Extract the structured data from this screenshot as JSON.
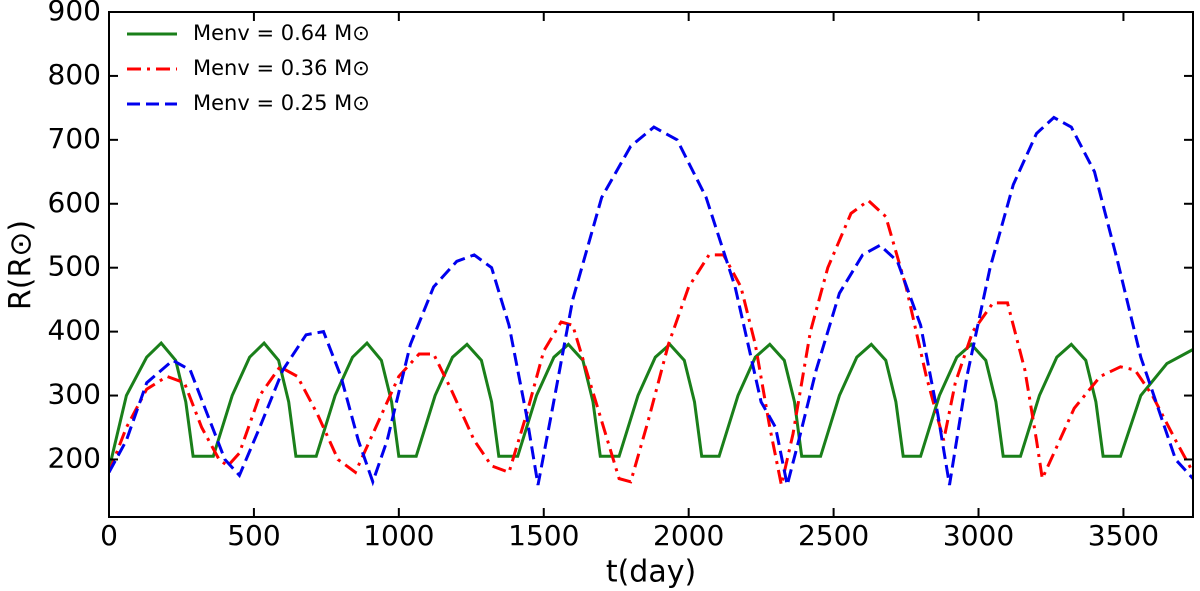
{
  "chart_data": {
    "type": "line",
    "x_label": "t(day)",
    "y_label": "R(R⊙)",
    "xlim": [
      0,
      3740
    ],
    "ylim": [
      110,
      900
    ],
    "xticks": [
      0,
      500,
      1000,
      1500,
      2000,
      2500,
      3000,
      3500
    ],
    "yticks": [
      200,
      300,
      400,
      500,
      600,
      700,
      800,
      900
    ],
    "legend": "upper left",
    "series": [
      {
        "name": "Menv = 0.64 M⊙",
        "color": "#1a7f1a",
        "style": "solid",
        "x": [
          0,
          60,
          130,
          180,
          230,
          265,
          290,
          360,
          425,
          485,
          535,
          585,
          620,
          645,
          715,
          780,
          840,
          890,
          940,
          975,
          1000,
          1060,
          1125,
          1185,
          1235,
          1285,
          1320,
          1345,
          1410,
          1475,
          1535,
          1585,
          1635,
          1670,
          1695,
          1760,
          1825,
          1885,
          1935,
          1985,
          2020,
          2045,
          2105,
          2170,
          2230,
          2280,
          2330,
          2365,
          2390,
          2455,
          2520,
          2580,
          2630,
          2680,
          2715,
          2740,
          2800,
          2865,
          2925,
          2975,
          3025,
          3060,
          3085,
          3145,
          3210,
          3270,
          3320,
          3370,
          3405,
          3430,
          3490,
          3560,
          3650,
          3740
        ],
        "values": [
          185,
          300,
          360,
          382,
          355,
          290,
          205,
          205,
          300,
          360,
          382,
          355,
          290,
          205,
          205,
          300,
          360,
          382,
          355,
          290,
          205,
          205,
          300,
          360,
          380,
          355,
          290,
          205,
          205,
          300,
          360,
          380,
          355,
          290,
          205,
          205,
          300,
          360,
          380,
          355,
          290,
          205,
          205,
          300,
          360,
          380,
          355,
          290,
          205,
          205,
          300,
          360,
          380,
          355,
          290,
          205,
          205,
          300,
          360,
          380,
          355,
          290,
          205,
          205,
          300,
          360,
          380,
          355,
          290,
          205,
          205,
          300,
          350,
          372
        ]
      },
      {
        "name": "Menv = 0.36 M⊙",
        "color": "#ff0000",
        "style": "dashdot",
        "x": [
          0,
          60,
          130,
          200,
          260,
          320,
          380,
          410,
          450,
          520,
          590,
          650,
          720,
          790,
          850,
          920,
          1000,
          1070,
          1120,
          1180,
          1260,
          1320,
          1380,
          1440,
          1500,
          1560,
          1600,
          1660,
          1720,
          1760,
          1800,
          1860,
          1930,
          2000,
          2070,
          2120,
          2180,
          2230,
          2280,
          2320,
          2360,
          2420,
          2480,
          2560,
          2620,
          2680,
          2750,
          2820,
          2880,
          2920,
          2980,
          3050,
          3100,
          3160,
          3200,
          3220,
          3260,
          3330,
          3420,
          3490,
          3540,
          3600,
          3680,
          3740
        ],
        "values": [
          180,
          250,
          310,
          330,
          320,
          250,
          200,
          190,
          210,
          300,
          345,
          330,
          270,
          200,
          180,
          250,
          330,
          365,
          365,
          310,
          230,
          190,
          180,
          270,
          370,
          415,
          410,
          320,
          230,
          170,
          165,
          260,
          380,
          470,
          520,
          520,
          470,
          380,
          250,
          160,
          240,
          400,
          500,
          585,
          605,
          580,
          470,
          330,
          230,
          320,
          400,
          445,
          445,
          340,
          230,
          170,
          210,
          280,
          330,
          345,
          340,
          300,
          230,
          180
        ]
      },
      {
        "name": "Menv = 0.25 M⊙",
        "color": "#0000ee",
        "style": "dashed",
        "x": [
          0,
          60,
          130,
          220,
          280,
          340,
          400,
          450,
          520,
          600,
          680,
          740,
          800,
          860,
          910,
          960,
          1040,
          1120,
          1200,
          1260,
          1320,
          1380,
          1440,
          1480,
          1530,
          1600,
          1700,
          1800,
          1880,
          1960,
          2060,
          2160,
          2250,
          2300,
          2340,
          2380,
          2440,
          2520,
          2600,
          2660,
          2720,
          2800,
          2860,
          2900,
          2960,
          3040,
          3120,
          3200,
          3260,
          3320,
          3400,
          3480,
          3560,
          3620,
          3680,
          3740
        ],
        "values": [
          180,
          230,
          320,
          355,
          340,
          270,
          200,
          175,
          250,
          340,
          395,
          400,
          330,
          230,
          165,
          230,
          380,
          470,
          510,
          520,
          500,
          410,
          270,
          160,
          280,
          450,
          610,
          690,
          720,
          700,
          610,
          470,
          290,
          250,
          160,
          230,
          340,
          460,
          520,
          535,
          510,
          410,
          270,
          160,
          330,
          500,
          630,
          710,
          735,
          720,
          650,
          510,
          360,
          280,
          200,
          170
        ]
      }
    ]
  }
}
